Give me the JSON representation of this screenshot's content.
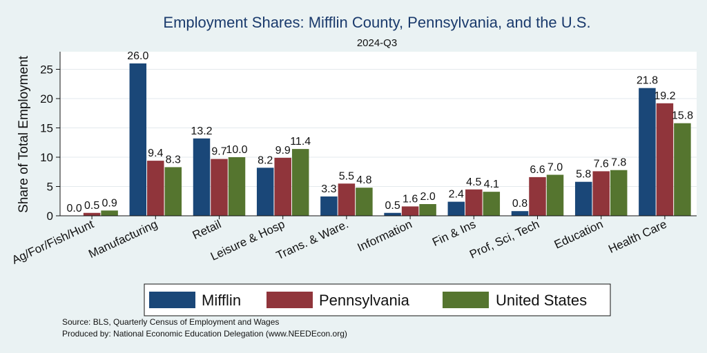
{
  "chart_data": {
    "type": "bar",
    "title": "Employment Shares: Mifflin County, Pennsylvania, and the U.S.",
    "subtitle": "2024-Q3",
    "ylabel": "Share of Total Employment",
    "xlabel": "",
    "ylim": [
      0,
      28
    ],
    "yticks": [
      0,
      5,
      10,
      15,
      20,
      25
    ],
    "grid": true,
    "legend_position": "bottom",
    "categories": [
      "Ag/For/Fish/Hunt",
      "Manufacturing",
      "Retail",
      "Leisure & Hosp",
      "Trans. & Ware.",
      "Information",
      "Fin & Ins",
      "Prof, Sci, Tech",
      "Education",
      "Health Care"
    ],
    "series": [
      {
        "name": "Mifflin",
        "color": "#1a4778",
        "values": [
          0.0,
          26.0,
          13.2,
          8.2,
          3.3,
          0.5,
          2.4,
          0.8,
          5.8,
          21.8
        ]
      },
      {
        "name": "Pennsylvania",
        "color": "#90353b",
        "values": [
          0.5,
          9.4,
          9.7,
          9.9,
          5.5,
          1.6,
          4.5,
          6.6,
          7.6,
          19.2
        ]
      },
      {
        "name": "United States",
        "color": "#55752f",
        "values": [
          0.9,
          8.3,
          10.0,
          11.4,
          4.8,
          2.0,
          4.1,
          7.0,
          7.8,
          15.8
        ]
      }
    ]
  },
  "notes": {
    "source": "Source: BLS, Quarterly Census of Employment and Wages",
    "produced": "Produced by: National Economic Education Delegation (www.NEEDEcon.org)"
  }
}
